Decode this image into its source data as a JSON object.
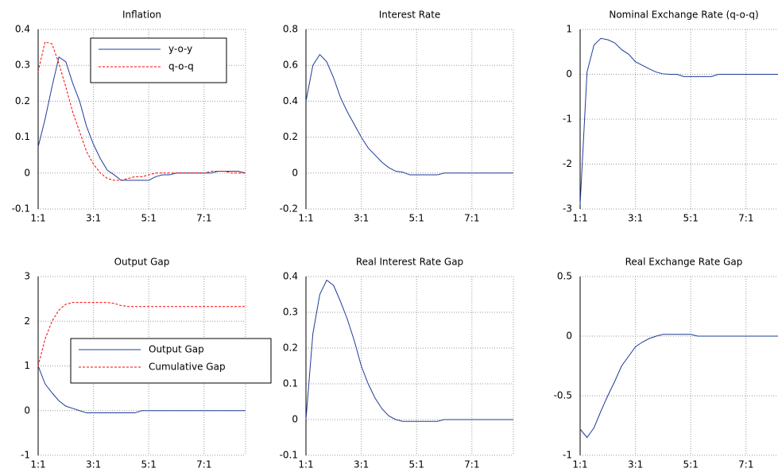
{
  "chart_data": [
    {
      "type": "line",
      "title": "Inflation",
      "categories": [
        "1:1",
        null,
        null,
        null,
        null,
        null,
        null,
        null,
        "3:1",
        null,
        null,
        null,
        null,
        null,
        null,
        null,
        "5:1",
        null,
        null,
        null,
        null,
        null,
        null,
        null,
        "7:1",
        null,
        null,
        null,
        null,
        null,
        null
      ],
      "series": [
        {
          "name": "y-o-y",
          "color": "#1f3c96",
          "linestyle": "solid",
          "values": [
            0.073,
            0.15,
            0.24,
            0.323,
            0.31,
            0.25,
            0.2,
            0.13,
            0.08,
            0.04,
            0.008,
            -0.005,
            -0.02,
            -0.02,
            -0.02,
            -0.02,
            -0.02,
            -0.01,
            -0.005,
            -0.005,
            0,
            0,
            0,
            0,
            0,
            0,
            0.005,
            0.005,
            0.005,
            0.005,
            0
          ]
        },
        {
          "name": "q-o-q",
          "color": "#ff0000",
          "linestyle": "dashed",
          "values": [
            0.283,
            0.365,
            0.36,
            0.305,
            0.24,
            0.17,
            0.115,
            0.06,
            0.025,
            0,
            -0.015,
            -0.02,
            -0.02,
            -0.015,
            -0.01,
            -0.01,
            -0.005,
            0,
            0,
            0,
            0,
            0,
            0,
            0,
            0,
            0.005,
            0.005,
            0.005,
            0,
            0,
            0
          ]
        }
      ],
      "ylim": [
        -0.1,
        0.4
      ],
      "yticks": [
        -0.1,
        0,
        0.1,
        0.2,
        0.3,
        0.4
      ],
      "grid": true,
      "legend": "upper right"
    },
    {
      "type": "line",
      "title": "Interest Rate",
      "categories": [
        "1:1",
        null,
        null,
        null,
        null,
        null,
        null,
        null,
        "3:1",
        null,
        null,
        null,
        null,
        null,
        null,
        null,
        "5:1",
        null,
        null,
        null,
        null,
        null,
        null,
        null,
        "7:1",
        null,
        null,
        null,
        null,
        null,
        null
      ],
      "series": [
        {
          "color": "#1f3c96",
          "linestyle": "solid",
          "values": [
            0.4,
            0.6,
            0.66,
            0.62,
            0.53,
            0.42,
            0.34,
            0.27,
            0.2,
            0.14,
            0.1,
            0.06,
            0.03,
            0.01,
            0.005,
            -0.01,
            -0.01,
            -0.01,
            -0.01,
            -0.01,
            0,
            0,
            0,
            0,
            0,
            0,
            0,
            0,
            0,
            0,
            0
          ]
        }
      ],
      "ylim": [
        -0.2,
        0.8
      ],
      "yticks": [
        -0.2,
        0,
        0.2,
        0.4,
        0.6,
        0.8
      ],
      "grid": true
    },
    {
      "type": "line",
      "title": "Nominal Exchange Rate (q-o-q)",
      "categories": [
        "1:1",
        null,
        null,
        null,
        null,
        null,
        null,
        null,
        "3:1",
        null,
        null,
        null,
        null,
        null,
        null,
        null,
        "5:1",
        null,
        null,
        null,
        null,
        null,
        null,
        null,
        "7:1",
        null,
        null,
        null,
        null,
        null,
        null
      ],
      "series": [
        {
          "color": "#1f3c96",
          "linestyle": "solid",
          "values": [
            -2.9,
            0.05,
            0.65,
            0.8,
            0.77,
            0.7,
            0.55,
            0.45,
            0.28,
            0.2,
            0.12,
            0.05,
            0.01,
            0,
            0,
            -0.05,
            -0.05,
            -0.05,
            -0.05,
            -0.05,
            0,
            0,
            0,
            0,
            0,
            0,
            0,
            0,
            0,
            0,
            0
          ]
        }
      ],
      "ylim": [
        -3,
        1
      ],
      "yticks": [
        -3,
        -2,
        -1,
        0,
        1
      ],
      "grid": true
    },
    {
      "type": "line",
      "title": "Output Gap",
      "categories": [
        "1:1",
        null,
        null,
        null,
        null,
        null,
        null,
        null,
        "3:1",
        null,
        null,
        null,
        null,
        null,
        null,
        null,
        "5:1",
        null,
        null,
        null,
        null,
        null,
        null,
        null,
        "7:1",
        null,
        null,
        null,
        null,
        null,
        null
      ],
      "series": [
        {
          "name": "Output Gap",
          "color": "#1f3c96",
          "linestyle": "solid",
          "values": [
            1,
            0.6,
            0.4,
            0.22,
            0.1,
            0.05,
            0,
            -0.05,
            -0.05,
            -0.05,
            -0.05,
            -0.05,
            -0.05,
            -0.05,
            -0.05,
            0,
            0,
            0,
            0,
            0,
            0,
            0,
            0,
            0,
            0,
            0,
            0,
            0,
            0,
            0,
            0
          ]
        },
        {
          "name": "Cumulative Gap",
          "color": "#ff0000",
          "linestyle": "dashed",
          "values": [
            1,
            1.6,
            2,
            2.25,
            2.38,
            2.42,
            2.42,
            2.42,
            2.42,
            2.42,
            2.42,
            2.4,
            2.35,
            2.33,
            2.33,
            2.33,
            2.33,
            2.33,
            2.33,
            2.33,
            2.33,
            2.33,
            2.33,
            2.33,
            2.33,
            2.33,
            2.33,
            2.33,
            2.33,
            2.33,
            2.33
          ]
        }
      ],
      "ylim": [
        -1,
        3
      ],
      "yticks": [
        -1,
        0,
        1,
        2,
        3
      ],
      "grid": true,
      "legend": "center"
    },
    {
      "type": "line",
      "title": "Real Interest Rate Gap",
      "categories": [
        "1:1",
        null,
        null,
        null,
        null,
        null,
        null,
        null,
        "3:1",
        null,
        null,
        null,
        null,
        null,
        null,
        null,
        "5:1",
        null,
        null,
        null,
        null,
        null,
        null,
        null,
        "7:1",
        null,
        null,
        null,
        null,
        null,
        null
      ],
      "series": [
        {
          "color": "#1f3c96",
          "linestyle": "solid",
          "values": [
            0,
            0.24,
            0.35,
            0.39,
            0.375,
            0.33,
            0.28,
            0.22,
            0.15,
            0.1,
            0.06,
            0.03,
            0.01,
            0,
            -0.005,
            -0.005,
            -0.005,
            -0.005,
            -0.005,
            -0.005,
            0,
            0,
            0,
            0,
            0,
            0,
            0,
            0,
            0,
            0,
            0
          ]
        }
      ],
      "ylim": [
        -0.1,
        0.4
      ],
      "yticks": [
        -0.1,
        0,
        0.1,
        0.2,
        0.3,
        0.4
      ],
      "grid": true
    },
    {
      "type": "line",
      "title": "Real Exchange Rate Gap",
      "categories": [
        "1:1",
        null,
        null,
        null,
        null,
        null,
        null,
        null,
        "3:1",
        null,
        null,
        null,
        null,
        null,
        null,
        null,
        "5:1",
        null,
        null,
        null,
        null,
        null,
        null,
        null,
        "7:1",
        null,
        null,
        null,
        null,
        null,
        null
      ],
      "series": [
        {
          "color": "#1f3c96",
          "linestyle": "solid",
          "values": [
            -0.78,
            -0.85,
            -0.77,
            -0.63,
            -0.5,
            -0.38,
            -0.25,
            -0.17,
            -0.09,
            -0.05,
            -0.02,
            0,
            0.015,
            0.015,
            0.015,
            0.015,
            0.015,
            0,
            0,
            0,
            0,
            0,
            0,
            0,
            0,
            0,
            0,
            0,
            0,
            0,
            0
          ]
        }
      ],
      "ylim": [
        -1,
        0.5
      ],
      "yticks": [
        -1,
        -0.5,
        0,
        0.5
      ],
      "grid": true
    }
  ]
}
